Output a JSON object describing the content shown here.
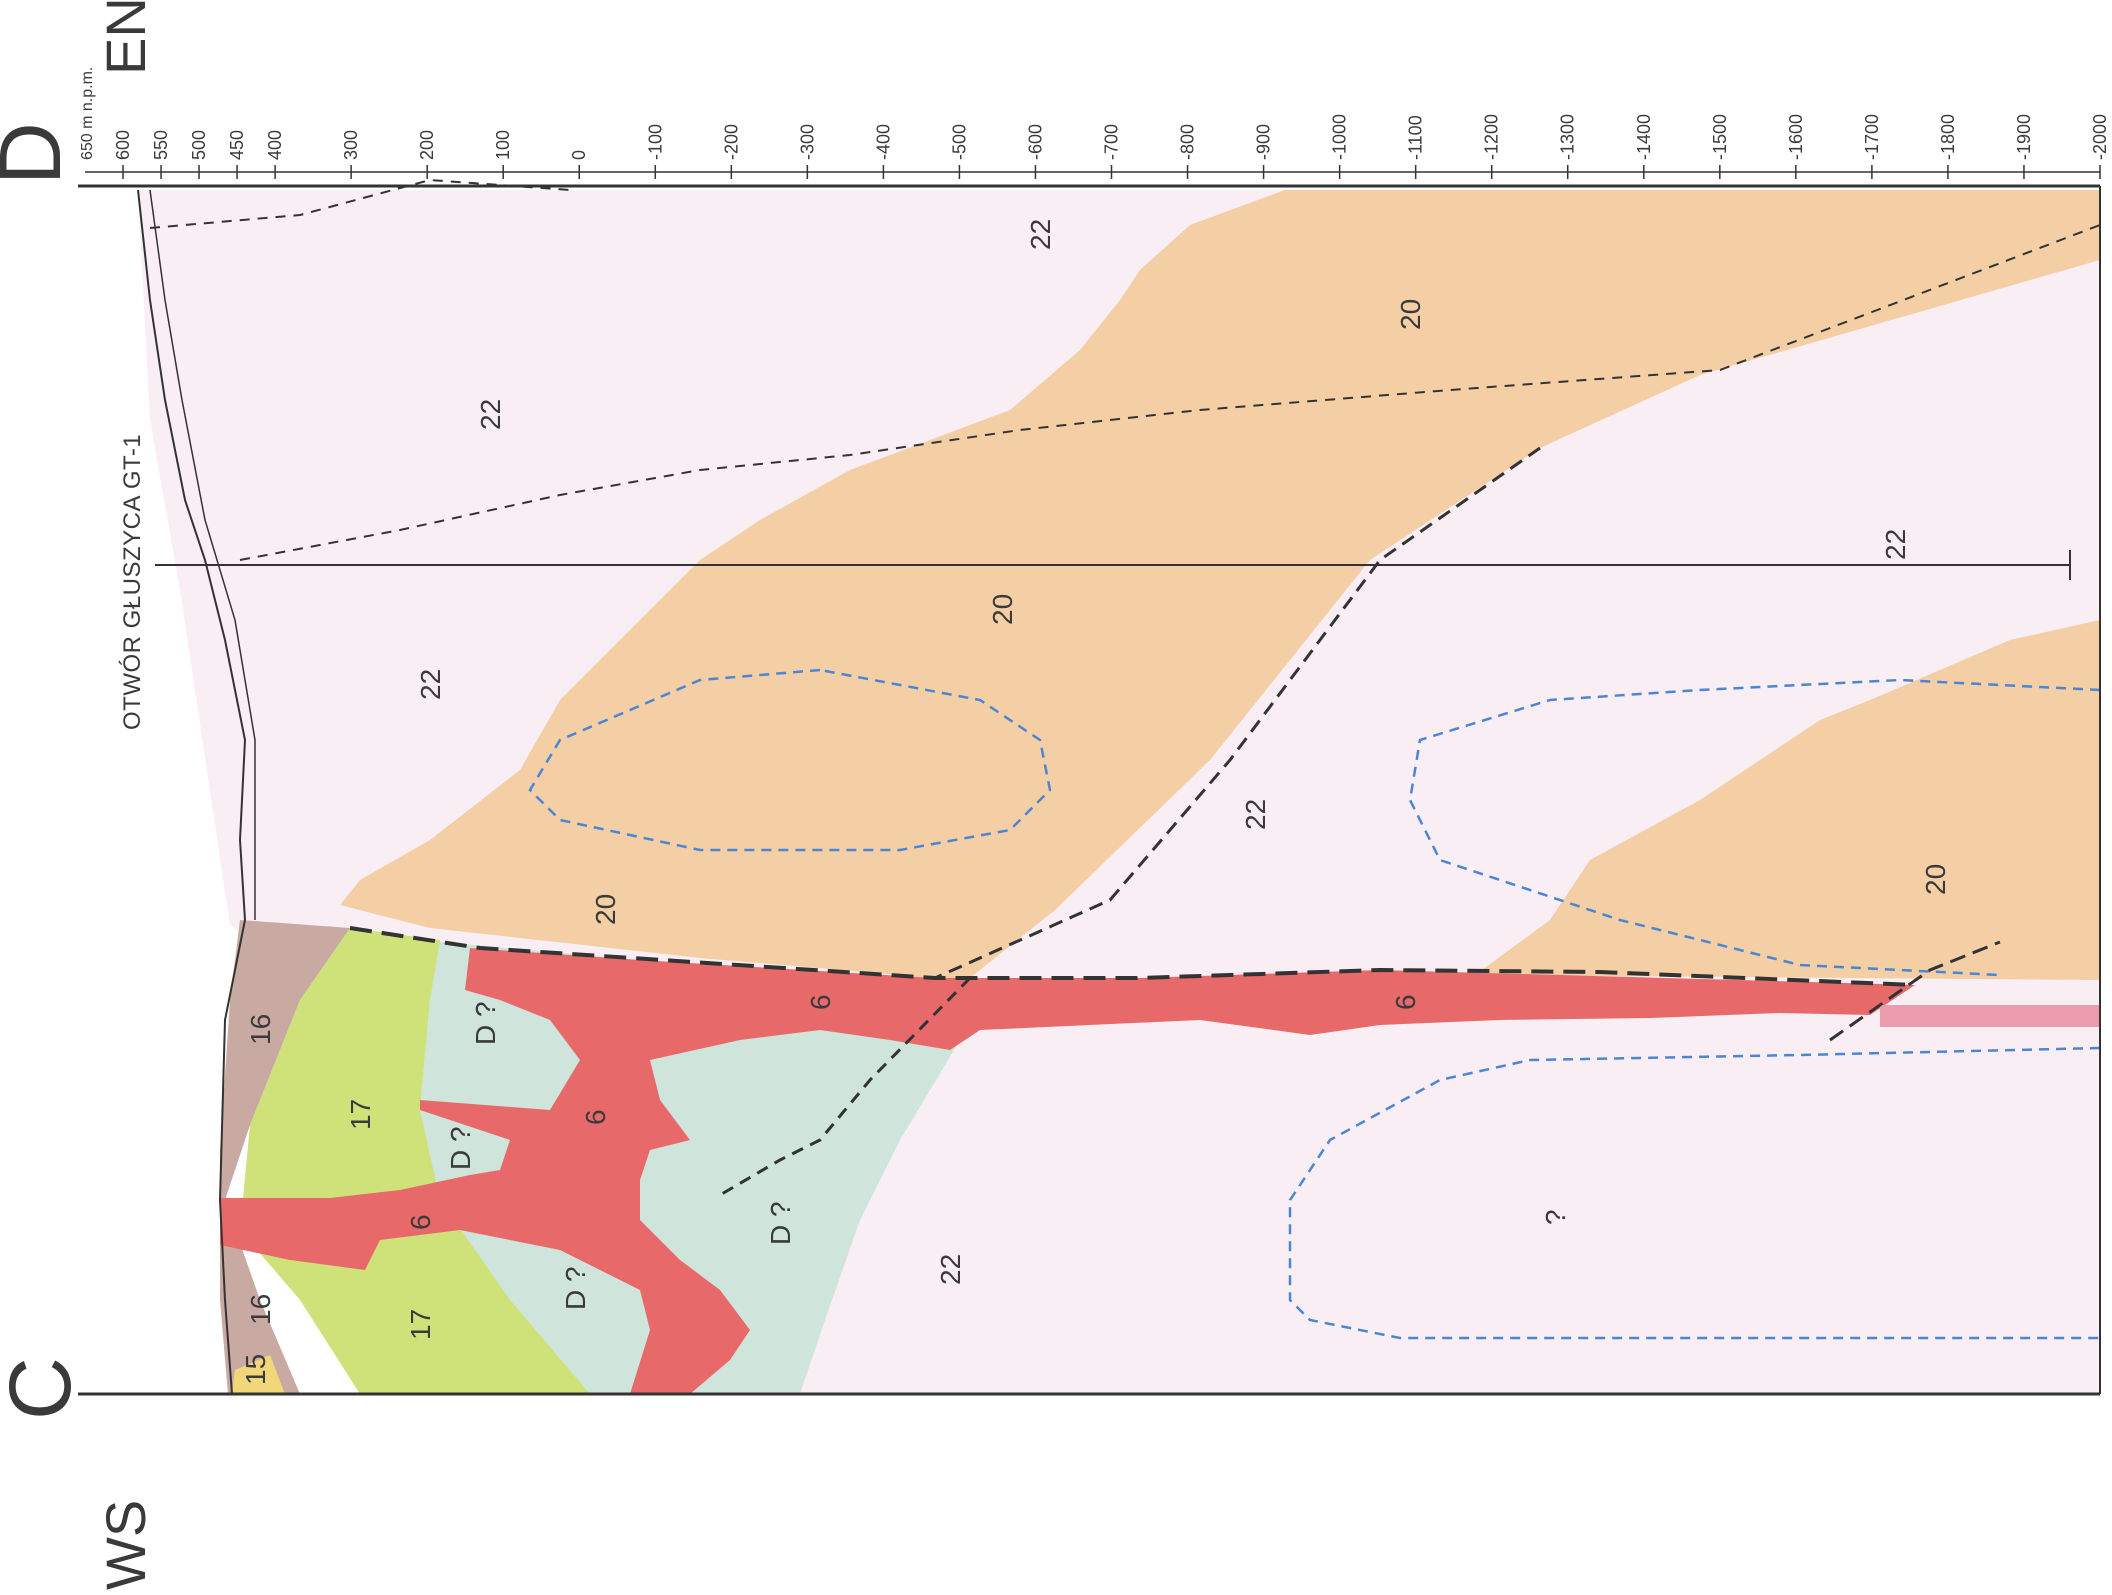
{
  "section": {
    "end_left_label": "C",
    "end_right_label": "D",
    "direction_left": "WS",
    "direction_right": "EN",
    "elevation_unit": "650 m n.p.m.",
    "elevation_ticks": [
      "600",
      "550",
      "500",
      "450",
      "400",
      "300",
      "200",
      "100",
      "0",
      "-100",
      "-200",
      "-300",
      "-400",
      "-500",
      "-600",
      "-700",
      "-800",
      "-900",
      "-1000",
      "-1100",
      "-1200",
      "-1300",
      "-1400",
      "-1500",
      "-1600",
      "-1700",
      "-1800",
      "-1900",
      "-2000"
    ],
    "well_label": "OTWÓR GŁUSZYCA GT-1"
  },
  "unit_labels": {
    "u22a": "22",
    "u22b": "22",
    "u22c": "22",
    "u22d": "22",
    "u22e": "22",
    "u22f": "22",
    "u20a": "20",
    "u20b": "20",
    "u20c": "20",
    "u20d": "20",
    "u6a": "6",
    "u6b": "6",
    "u6c": "6",
    "u6d": "6",
    "u16a": "16",
    "u16b": "16",
    "u17a": "17",
    "u17b": "17",
    "u15": "15",
    "d1": "D ?",
    "d2": "D ?",
    "d3": "D ?",
    "d4": "D ?",
    "q": "?"
  },
  "colors": {
    "unit_22": "#f9eef3",
    "unit_20": "#f4cfa5",
    "unit_6": "#e8696a",
    "unit_16": "#c8aaa2",
    "unit_17": "#cfe27a",
    "unit_D": "#cfe4da",
    "unit_15": "#f2d77a",
    "thin_band": "#ec9aae",
    "contour_dashed": "#4a86d4",
    "fault": "#333333"
  }
}
